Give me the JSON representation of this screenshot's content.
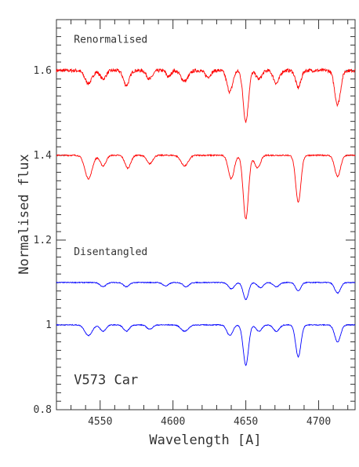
{
  "chart_data": {
    "type": "line",
    "xlabel": "Wavelength [A]",
    "ylabel": "Normalised flux",
    "xlim": [
      4520,
      4725
    ],
    "ylim": [
      0.8,
      1.72
    ],
    "x_ticks": [
      4550,
      4600,
      4650,
      4700
    ],
    "x_tick_labels": [
      "4550",
      "4600",
      "4650",
      "4700"
    ],
    "y_ticks": [
      0.8,
      1.0,
      1.2,
      1.4,
      1.6
    ],
    "y_tick_labels": [
      "0.8",
      "1",
      "1.2",
      "1.4",
      "1.6"
    ],
    "grid": false,
    "annotations": [
      {
        "text": "Renormalised",
        "x": 4532,
        "y": 1.665
      },
      {
        "text": "Disentangled",
        "x": 4532,
        "y": 1.165
      },
      {
        "text": "V573 Car",
        "x": 4532,
        "y": 0.86
      }
    ],
    "series": [
      {
        "color": "#ff0000",
        "baseline": 1.6,
        "noise": 0.008,
        "lines": [
          {
            "center": 4542,
            "depth": 0.03,
            "width": 2.5
          },
          {
            "center": 4552,
            "depth": 0.02,
            "width": 2.0
          },
          {
            "center": 4568,
            "depth": 0.035,
            "width": 2.0
          },
          {
            "center": 4584,
            "depth": 0.02,
            "width": 2.0
          },
          {
            "center": 4597,
            "depth": 0.015,
            "width": 1.5
          },
          {
            "center": 4608,
            "depth": 0.025,
            "width": 2.5
          },
          {
            "center": 4624,
            "depth": 0.015,
            "width": 2.0
          },
          {
            "center": 4639,
            "depth": 0.05,
            "width": 2.0
          },
          {
            "center": 4650,
            "depth": 0.12,
            "width": 1.8
          },
          {
            "center": 4659,
            "depth": 0.02,
            "width": 2.0
          },
          {
            "center": 4671,
            "depth": 0.03,
            "width": 2.0
          },
          {
            "center": 4686,
            "depth": 0.04,
            "width": 1.8
          },
          {
            "center": 4713,
            "depth": 0.08,
            "width": 2.0
          }
        ]
      },
      {
        "color": "#ff0000",
        "baseline": 1.4,
        "noise": 0.003,
        "lines": [
          {
            "center": 4542,
            "depth": 0.055,
            "width": 2.5
          },
          {
            "center": 4552,
            "depth": 0.025,
            "width": 2.0
          },
          {
            "center": 4569,
            "depth": 0.03,
            "width": 2.0
          },
          {
            "center": 4584,
            "depth": 0.02,
            "width": 2.0
          },
          {
            "center": 4608,
            "depth": 0.025,
            "width": 2.5
          },
          {
            "center": 4640,
            "depth": 0.055,
            "width": 2.0
          },
          {
            "center": 4650,
            "depth": 0.15,
            "width": 1.8
          },
          {
            "center": 4658,
            "depth": 0.03,
            "width": 2.0
          },
          {
            "center": 4686,
            "depth": 0.11,
            "width": 1.8
          },
          {
            "center": 4713,
            "depth": 0.05,
            "width": 2.0
          }
        ]
      },
      {
        "color": "#0000ff",
        "baseline": 1.1,
        "noise": 0.002,
        "lines": [
          {
            "center": 4552,
            "depth": 0.01,
            "width": 2.0
          },
          {
            "center": 4568,
            "depth": 0.01,
            "width": 2.0
          },
          {
            "center": 4595,
            "depth": 0.008,
            "width": 2.0
          },
          {
            "center": 4609,
            "depth": 0.01,
            "width": 2.0
          },
          {
            "center": 4640,
            "depth": 0.015,
            "width": 2.0
          },
          {
            "center": 4650,
            "depth": 0.04,
            "width": 1.8
          },
          {
            "center": 4660,
            "depth": 0.012,
            "width": 2.0
          },
          {
            "center": 4671,
            "depth": 0.01,
            "width": 2.0
          },
          {
            "center": 4686,
            "depth": 0.02,
            "width": 1.8
          },
          {
            "center": 4713,
            "depth": 0.025,
            "width": 2.0
          }
        ]
      },
      {
        "color": "#0000ff",
        "baseline": 1.0,
        "noise": 0.002,
        "lines": [
          {
            "center": 4542,
            "depth": 0.025,
            "width": 2.5
          },
          {
            "center": 4552,
            "depth": 0.015,
            "width": 2.0
          },
          {
            "center": 4568,
            "depth": 0.015,
            "width": 2.0
          },
          {
            "center": 4584,
            "depth": 0.01,
            "width": 2.0
          },
          {
            "center": 4608,
            "depth": 0.015,
            "width": 2.5
          },
          {
            "center": 4639,
            "depth": 0.025,
            "width": 2.0
          },
          {
            "center": 4650,
            "depth": 0.095,
            "width": 1.8
          },
          {
            "center": 4659,
            "depth": 0.015,
            "width": 2.0
          },
          {
            "center": 4671,
            "depth": 0.015,
            "width": 2.0
          },
          {
            "center": 4686,
            "depth": 0.075,
            "width": 1.8
          },
          {
            "center": 4713,
            "depth": 0.04,
            "width": 2.0
          }
        ]
      }
    ]
  }
}
